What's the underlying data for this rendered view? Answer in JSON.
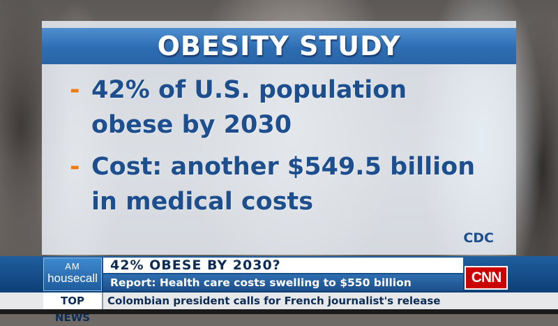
{
  "study": {
    "title": "OBESITY STUDY",
    "bullets": [
      {
        "dash": "-",
        "lines": [
          "42% of U.S. population",
          "obese by 2030"
        ]
      },
      {
        "dash": "-",
        "lines": [
          "Cost: another $549.5 billion",
          "in medical costs"
        ]
      }
    ],
    "source": "CDC"
  },
  "lower_third": {
    "show_logo": {
      "line1": "AM",
      "line2": "housecall"
    },
    "headline": "42% OBESE BY 2030?",
    "subheadline": "Report: Health care costs swelling to $550 billion",
    "network": "CNN"
  },
  "ticker": {
    "label": "TOP NEWS",
    "text": "Colombian president calls for French journalist's release"
  },
  "colors": {
    "title_bar": "#2d6db3",
    "bullet_text": "#1d4e8e",
    "dash": "#e87b1a",
    "network_red": "#cc0000"
  }
}
